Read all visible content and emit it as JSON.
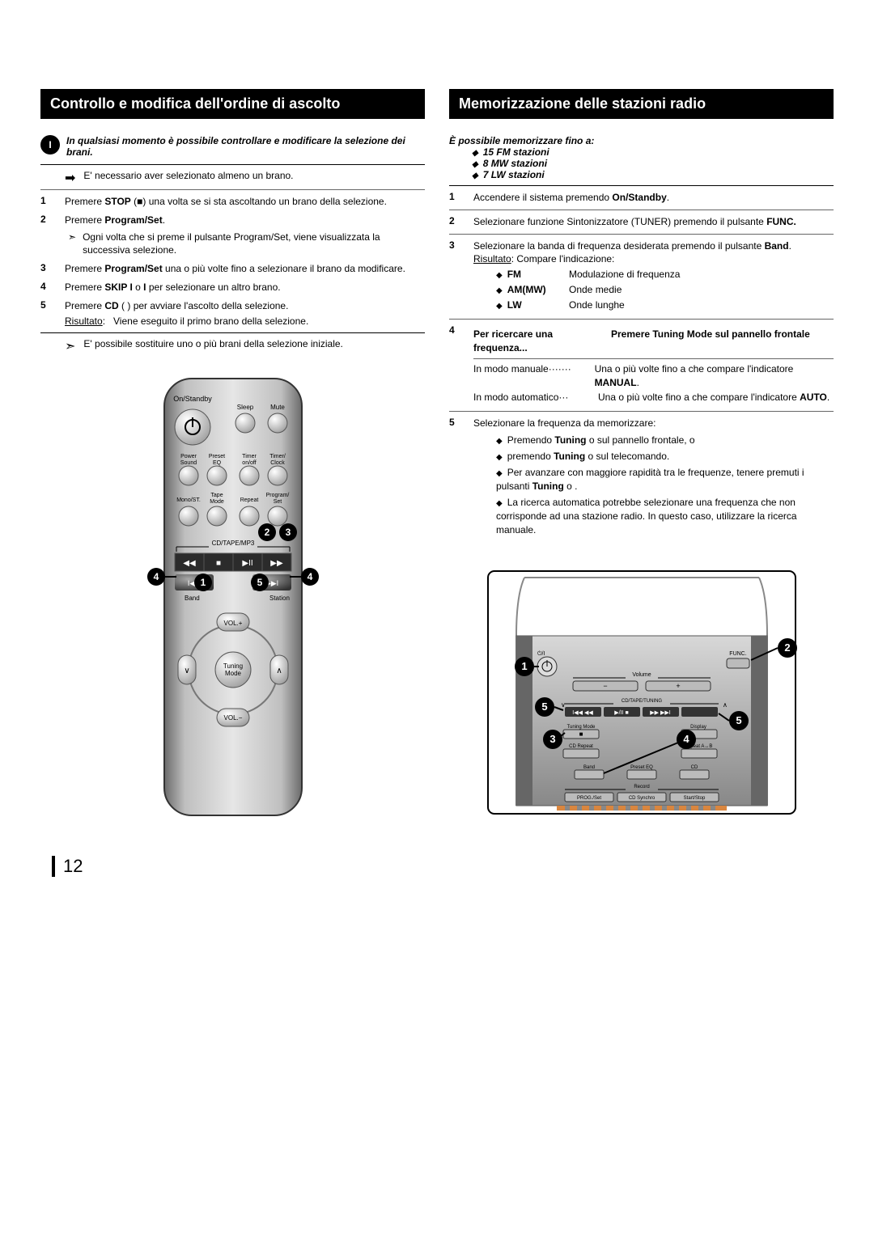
{
  "page_number": "12",
  "left": {
    "title": "Controllo e modifica dell'ordine di ascolto",
    "intro": "In qualsiasi momento è possibile controllare e modificare la selezione dei brani.",
    "prenote_icon": "➡",
    "prenote": "E' necessario aver selezionato almeno un brano.",
    "steps": [
      {
        "n": "1",
        "html": "Premere <b>STOP</b> (■) una volta se si sta ascoltando un brano della selezione."
      },
      {
        "n": "2",
        "html": "Premere <b>Program/Set</b>.",
        "sub": "Ogni volta che si preme il pulsante Program/Set, viene visualizzata la successiva selezione."
      },
      {
        "n": "3",
        "html": "Premere <b>Program/Set</b> una o più volte fino a selezionare il brano da modificare."
      },
      {
        "n": "4",
        "html": "Premere <b>SKIP I</b>   o   <b>I</b> per selezionare un altro brano."
      },
      {
        "n": "5",
        "html": "Premere <b>CD</b> (  ) per avviare l'ascolto della selezione.",
        "result_label": "Risultato",
        "result": "Viene eseguito il primo brano della selezione."
      }
    ],
    "footnote_icon": "➣",
    "footnote": "E' possibile sostituire uno o più brani della selezione iniziale.",
    "remote": {
      "labels": {
        "on_standby": "On/Standby",
        "sleep": "Sleep",
        "mute": "Mute",
        "power_sound": "Power\nSound",
        "preset_eq": "Preset\nEQ",
        "timer_onoff": "Timer\non/off",
        "timer_clock": "Timer/\nClock",
        "mono_st": "Mono/ST.",
        "tape_mode": "Tape\nMode",
        "repeat": "Repeat",
        "program_set": "Program/\nSet",
        "cd_tape_mp3": "CD/TAPE/MP3",
        "band": "Band",
        "station": "Station",
        "vol_up": "VOL.+",
        "vol_dn": "VOL.−",
        "tuning_mode": "Tuning\nMode"
      },
      "callouts": {
        "c1": "1",
        "c2": "2",
        "c3": "3",
        "c4a": "4",
        "c4b": "4",
        "c5": "5"
      }
    }
  },
  "right": {
    "title": "Memorizzazione delle stazioni radio",
    "capacity_lead": "È possibile memorizzare fino a:",
    "capacity": [
      "15 FM stazioni",
      "8 MW stazioni",
      "7 LW  stazioni"
    ],
    "steps": [
      {
        "n": "1",
        "html": "Accendere il sistema premendo <b>On/Standby</b>."
      },
      {
        "n": "2",
        "html": "Selezionare funzione Sintonizzatore (TUNER) premendo il pulsante <b>FUNC.</b>"
      },
      {
        "n": "3",
        "html": "Selezionare la banda di frequenza desiderata premendo il pulsante <b>Band</b>.",
        "result_label": "Risultato",
        "result_lead": "Compare l'indicazione:",
        "bands": [
          {
            "k": "FM",
            "v": "Modulazione di frequenza"
          },
          {
            "k": "AM(MW)",
            "v": "Onde medie"
          },
          {
            "k": "LW",
            "v": "Onde lunghe"
          }
        ]
      },
      {
        "n": "4",
        "head_l": "Per ricercare una frequenza...",
        "head_r": "Premere Tuning Mode sul pannello frontale",
        "rows": [
          {
            "k": "In modo manuale·······",
            "v": "Una o più volte fino a che compare l'indicatore <b>MANUAL</b>."
          },
          {
            "k": "In modo automatico···",
            "v": "Una o più volte fino a che compare l'indicatore <b>AUTO</b>."
          }
        ]
      },
      {
        "n": "5",
        "html": "Selezionare la frequenza da memorizzare:",
        "points": [
          "Premendo <b>Tuning</b>    o     sul pannello frontale, o",
          "premendo <b>Tuning</b>    o     sul telecomando.",
          "Per avanzare con maggiore rapidità tra le frequenze, tenere premuti i pulsanti  <b>Tuning</b>    o   .",
          "La ricerca automatica potrebbe selezionare una frequenza che non corrisponde ad una stazione radio. In questo caso, utilizzare la ricerca manuale."
        ]
      }
    ],
    "unit": {
      "labels": {
        "volume": "Volume",
        "tuning": "CD/TAPE/TUNING",
        "tuning_mode": "Tuning Mode",
        "display": "Display",
        "cd_repeat": "CD Repeat",
        "repeat_ab": "Repeat A↔B",
        "band": "Band",
        "preset_eq": "Preset EQ",
        "cd": "CD",
        "prog_set": "PROG./Set",
        "cd_synchro": "CD Synchro",
        "startstop": "Start/Stop",
        "record": "Record",
        "func": "FUNC."
      },
      "callouts": {
        "c1": "1",
        "c2": "2",
        "c3": "3",
        "c4": "4",
        "c5a": "5",
        "c5b": "5"
      }
    }
  }
}
